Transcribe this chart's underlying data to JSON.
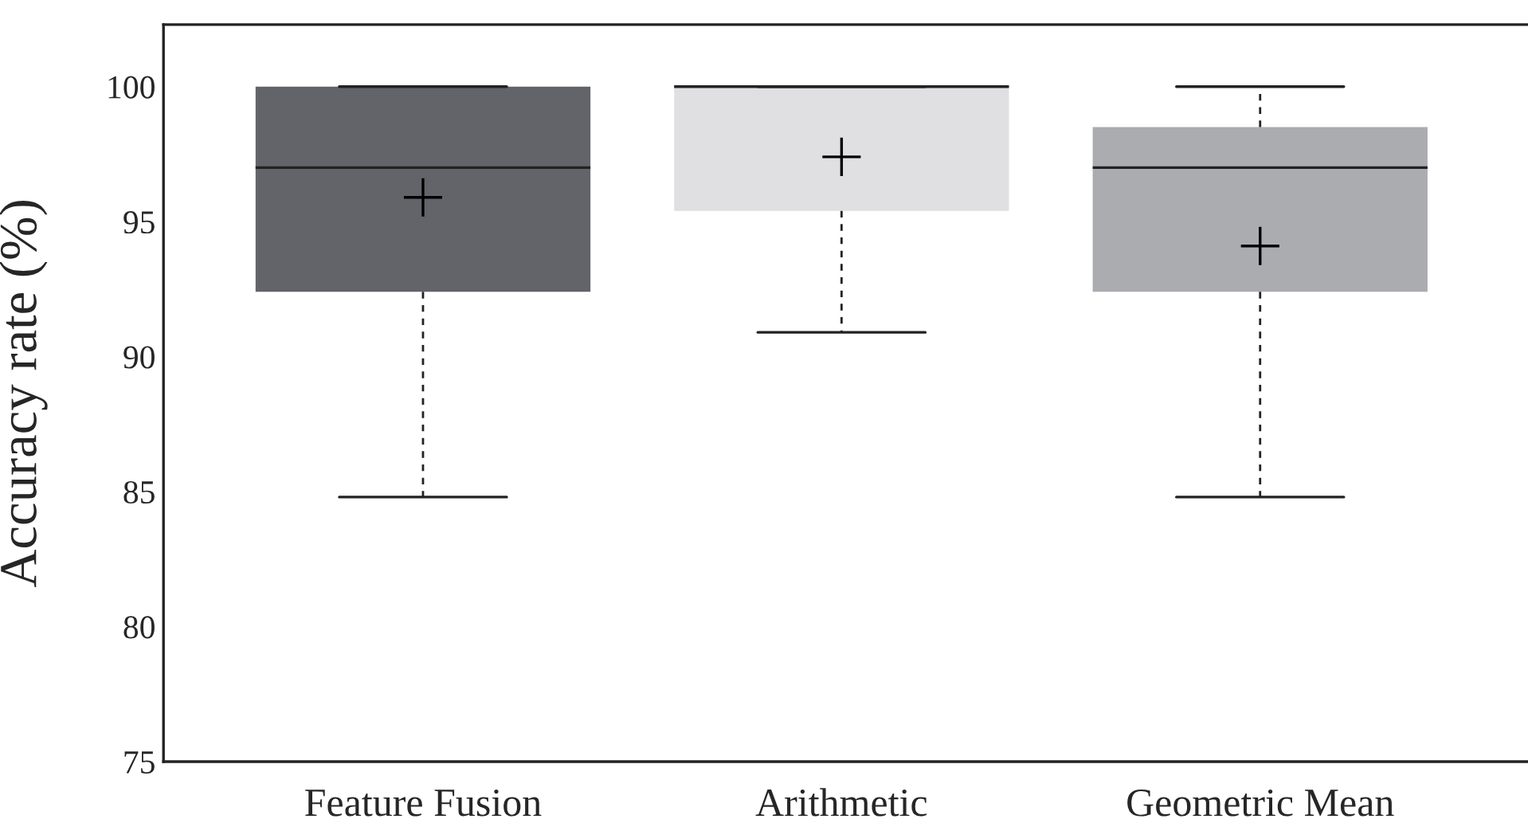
{
  "chart_data": {
    "type": "box",
    "ylabel": "Accuracy rate (%)",
    "categories": [
      "Feature Fusion",
      "Arithmetic",
      "Geometric Mean"
    ],
    "colors": [
      "#636469",
      "#e0e0e2",
      "#abacb0"
    ],
    "boxes": [
      {
        "low": 84.8,
        "q1": 92.4,
        "median": 97.0,
        "q3": 100,
        "high": 100,
        "mean": 95.9
      },
      {
        "low": 90.9,
        "q1": 95.4,
        "median": 100,
        "q3": 100,
        "high": 100,
        "mean": 97.4
      },
      {
        "low": 84.8,
        "q1": 92.4,
        "median": 97.0,
        "q3": 98.5,
        "high": 100,
        "mean": 94.1
      }
    ],
    "ylim": [
      75,
      102.3
    ],
    "yticks": [
      75,
      80,
      85,
      90,
      95,
      100
    ],
    "grid": false,
    "legend": false,
    "marker": "cross"
  }
}
